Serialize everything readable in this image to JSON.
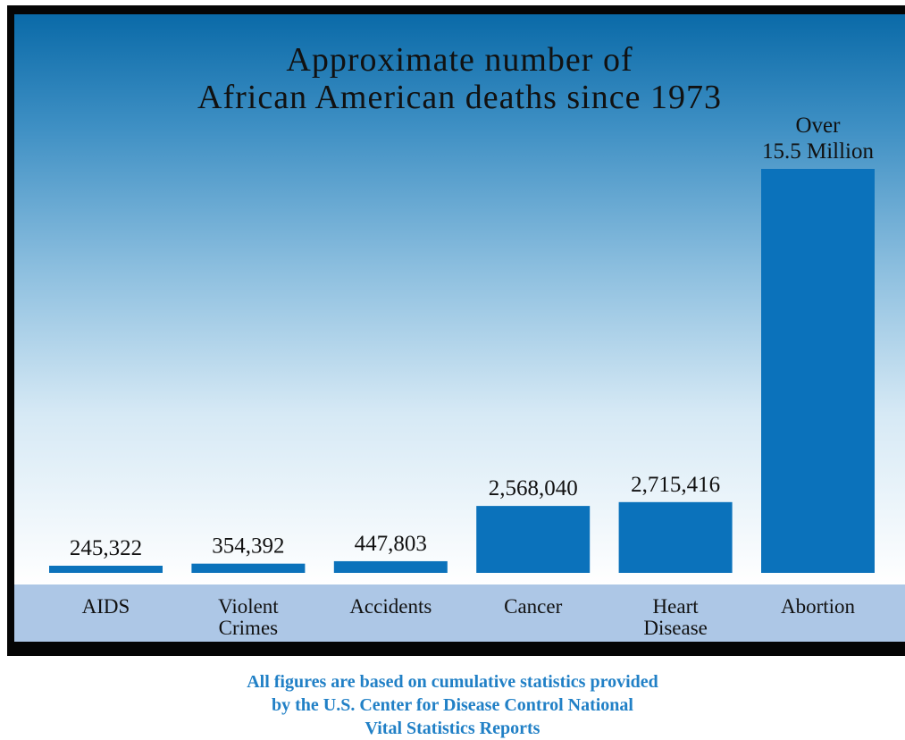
{
  "chart_data": {
    "type": "bar",
    "title": "Approximate number of\nAfrican American deaths since 1973",
    "categories": [
      "AIDS",
      "Violent\nCrimes",
      "Accidents",
      "Cancer",
      "Heart\nDisease",
      "Abortion"
    ],
    "values": [
      245322,
      354392,
      447803,
      2568040,
      2715416,
      15500000
    ],
    "data_labels": [
      "245,322",
      "354,392",
      "447,803",
      "2,568,040",
      "2,715,416",
      "Over\n15.5 Million"
    ],
    "xlabel": "",
    "ylabel": "",
    "ylim": [
      0,
      15500000
    ],
    "grid": false,
    "legend": "none",
    "colors": {
      "bar": "#0b72bb",
      "category_band": "#adc7e6",
      "frame": "#050505",
      "note_text": "#2180c6"
    }
  },
  "footnote": [
    "All figures are based on cumulative statistics provided",
    "by the U.S. Center for Disease Control National",
    "Vital Statistics Reports"
  ]
}
